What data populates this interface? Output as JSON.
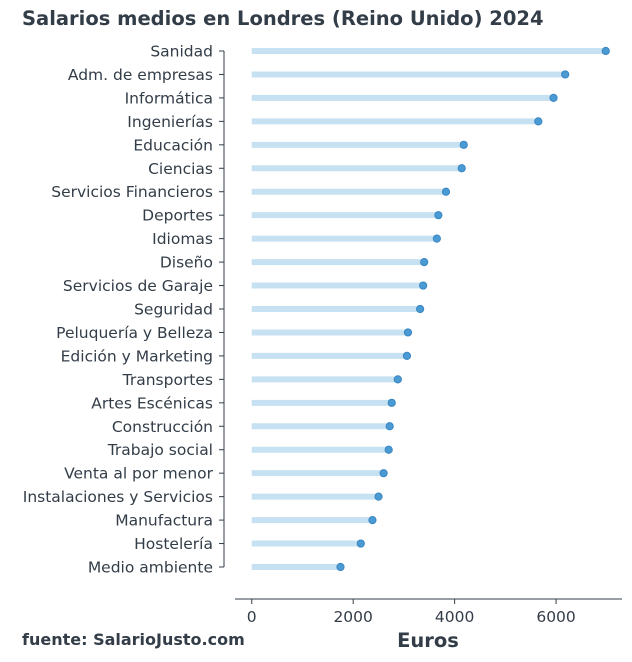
{
  "chart_data": {
    "type": "lollipop",
    "title": "Salarios medios en Londres (Reino Unido) 2024",
    "xlabel": "Euros",
    "source": "fuente: SalarioJusto.com",
    "xlim": [
      -330,
      7300
    ],
    "xticks": [
      0,
      2000,
      4000,
      6000
    ],
    "grid": false,
    "colors": {
      "stem": "#c6e1f1",
      "dot": "#4a9ad4",
      "text": "#333d48"
    },
    "categories": [
      "Sanidad",
      "Adm. de empresas",
      "Informática",
      "Ingenierías",
      "Educación",
      "Ciencias",
      "Servicios Financieros",
      "Deportes",
      "Idiomas",
      "Diseño",
      "Servicios de Garaje",
      "Seguridad",
      "Peluquería y Belleza",
      "Edición y Marketing",
      "Transportes",
      "Artes Escénicas",
      "Construcción",
      "Trabajo social",
      "Venta al por menor",
      "Instalaciones y Servicios",
      "Manufactura",
      "Hostelería",
      "Medio ambiente"
    ],
    "values": [
      6980,
      6180,
      5950,
      5650,
      4180,
      4140,
      3830,
      3680,
      3650,
      3400,
      3380,
      3320,
      3080,
      3060,
      2880,
      2760,
      2720,
      2700,
      2600,
      2500,
      2380,
      2150,
      1750
    ]
  }
}
